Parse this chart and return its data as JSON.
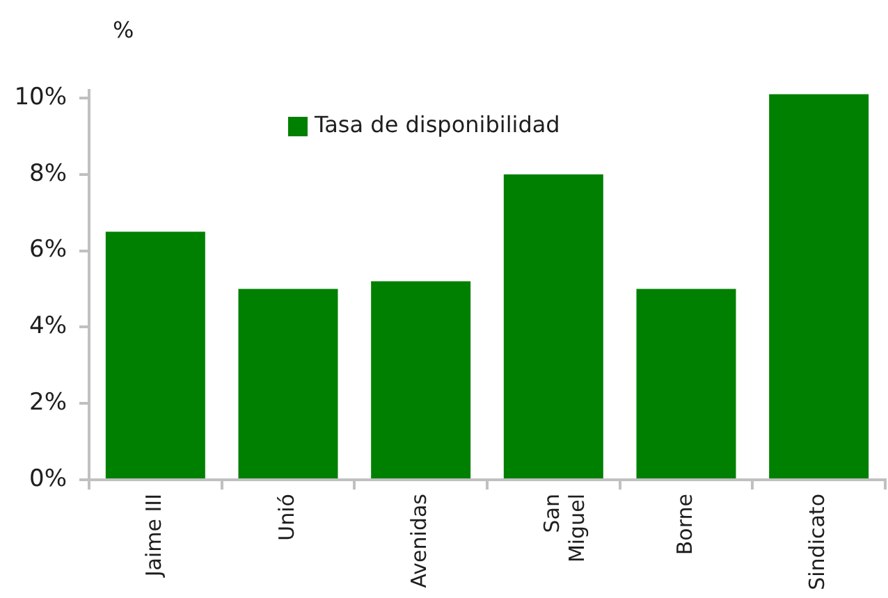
{
  "chart_data": {
    "type": "bar",
    "ylabel": "%",
    "categories": [
      "Jaime III",
      "Unió",
      "Avenidas",
      "San Miguel",
      "Borne",
      "Sindicato"
    ],
    "series": [
      {
        "name": "Tasa de disponibilidad",
        "color": "#008000",
        "values": [
          6.5,
          5.0,
          5.2,
          8.0,
          5.0,
          10.1
        ]
      }
    ],
    "ylim": [
      0,
      10.2
    ],
    "yticks": [
      {
        "value": 0,
        "label": "0%"
      },
      {
        "value": 2,
        "label": "2%"
      },
      {
        "value": 4,
        "label": "4%"
      },
      {
        "value": 6,
        "label": "6%"
      },
      {
        "value": 8,
        "label": "8%"
      },
      {
        "value": 10,
        "label": "10%"
      }
    ],
    "legend": "top"
  }
}
